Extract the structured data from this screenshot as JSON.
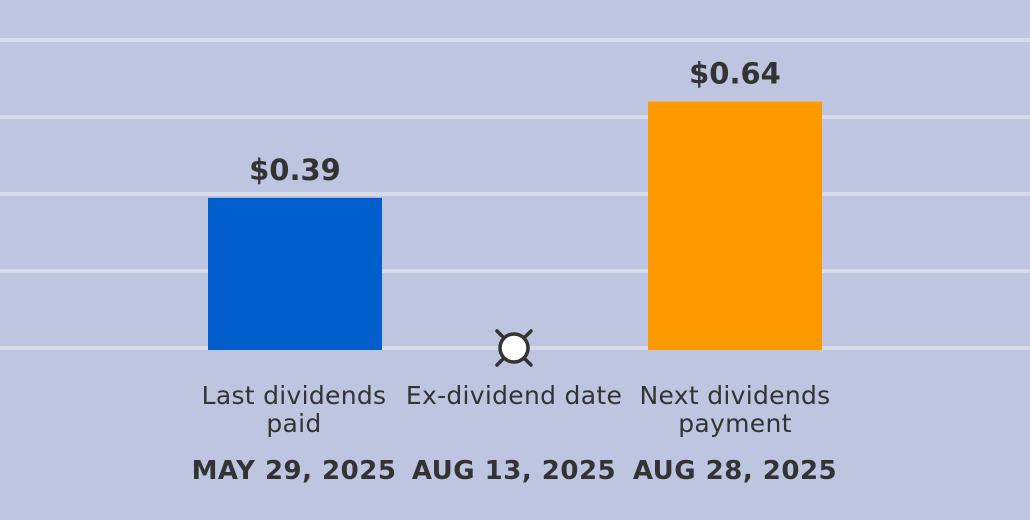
{
  "chart_data": {
    "type": "bar",
    "categories": [
      "Last dividends paid",
      "Ex-dividend date",
      "Next dividends payment"
    ],
    "dates": [
      "MAY 29, 2025",
      "AUG 13, 2025",
      "AUG 28, 2025"
    ],
    "values": [
      0.39,
      null,
      0.64
    ],
    "value_labels": [
      "$0.39",
      "",
      "$0.64"
    ],
    "colors": [
      "#005fcc",
      null,
      "#ff9900"
    ],
    "marker_category": "Ex-dividend date",
    "grid": true,
    "ylim": [
      0,
      0.8
    ]
  },
  "colors": {
    "background": "#bec5e0",
    "gridline": "#d8dce8",
    "text": "#333333",
    "last_paid_bar": "#005fcc",
    "next_payment_bar": "#ff9900",
    "marker_fill": "#ffffff",
    "marker_stroke": "#333333"
  },
  "labels": {
    "last_paid": "Last dividends paid",
    "ex_dividend": "Ex-dividend date",
    "next_payment": "Next dividends payment"
  },
  "dates": {
    "last_paid": "MAY 29, 2025",
    "ex_dividend": "AUG 13, 2025",
    "next_payment": "AUG 28, 2025"
  },
  "icons": {
    "ex_dividend_marker": "circle-marker-icon"
  }
}
